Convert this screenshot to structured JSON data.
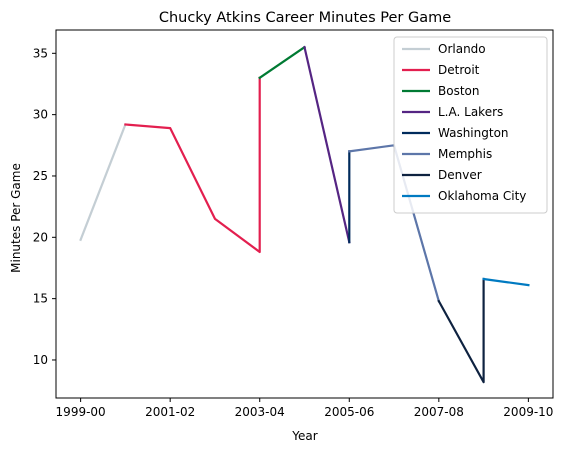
{
  "chart_data": {
    "type": "line",
    "title": "Chucky Atkins Career Minutes Per Game",
    "xlabel": "Year",
    "ylabel": "Minutes Per Game",
    "x_tick_labels": [
      "1999-00",
      "2001-02",
      "2003-04",
      "2005-06",
      "2007-08",
      "2009-10"
    ],
    "x_tick_positions": [
      0,
      2,
      4,
      6,
      8,
      10
    ],
    "xlim": [
      -0.55,
      10.55
    ],
    "ylim": [
      6.9,
      36.9
    ],
    "y_ticks": [
      10,
      15,
      20,
      25,
      30,
      35
    ],
    "grid": false,
    "legend_position": "top-right",
    "series": [
      {
        "name": "Orlando",
        "color": "#C4CED4",
        "x": [
          0,
          1
        ],
        "y": [
          19.8,
          29.2
        ]
      },
      {
        "name": "Detroit",
        "color": "#E31F4F",
        "x": [
          1,
          2,
          3,
          4,
          4
        ],
        "y": [
          29.2,
          28.9,
          21.5,
          18.8,
          33.0
        ]
      },
      {
        "name": "Boston",
        "color": "#007A33",
        "x": [
          4,
          5
        ],
        "y": [
          33.0,
          35.5
        ]
      },
      {
        "name": "L.A. Lakers",
        "color": "#552583",
        "x": [
          5,
          6
        ],
        "y": [
          35.5,
          19.6
        ]
      },
      {
        "name": "Washington",
        "color": "#002B5C",
        "x": [
          6,
          6
        ],
        "y": [
          19.6,
          27.0
        ]
      },
      {
        "name": "Memphis",
        "color": "#5D76A9",
        "x": [
          6,
          7,
          8
        ],
        "y": [
          27.0,
          27.5,
          14.8
        ]
      },
      {
        "name": "Denver",
        "color": "#0E2240",
        "x": [
          8,
          9,
          9
        ],
        "y": [
          14.8,
          8.2,
          16.6
        ]
      },
      {
        "name": "Oklahoma City",
        "color": "#007AC1",
        "x": [
          9,
          10
        ],
        "y": [
          16.6,
          16.1
        ]
      }
    ]
  }
}
